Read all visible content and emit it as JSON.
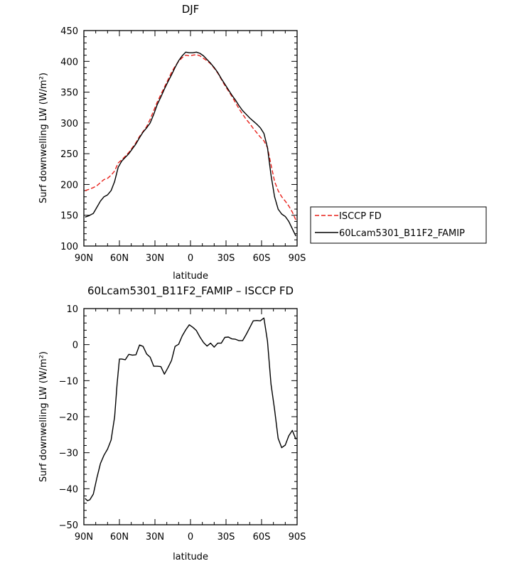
{
  "chart_data": [
    {
      "type": "line",
      "title": "DJF",
      "xlabel": "latitude",
      "ylabel": "Surf downwelling LW (W/m²)",
      "xlim": [
        90,
        -90
      ],
      "ylim": [
        100,
        450
      ],
      "xticks": [
        90,
        60,
        30,
        0,
        -30,
        -60,
        -90
      ],
      "xtick_labels": [
        "90N",
        "60N",
        "30N",
        "0",
        "30S",
        "60S",
        "90S"
      ],
      "yticks": [
        100,
        150,
        200,
        250,
        300,
        350,
        400,
        450
      ],
      "ytick_labels": [
        "100",
        "150",
        "200",
        "250",
        "300",
        "350",
        "400",
        "450"
      ],
      "legend_position": "right",
      "series": [
        {
          "name": "ISCCP FD",
          "color": "#e8201a",
          "dash": "dashed",
          "x": [
            89,
            86,
            82,
            79,
            76,
            73,
            70,
            67,
            64,
            61,
            58,
            55,
            52,
            49,
            46,
            43,
            40,
            37,
            34,
            31,
            28,
            25,
            22,
            19,
            16,
            13,
            10,
            7,
            4,
            1,
            -2,
            -5,
            -8,
            -11,
            -14,
            -17,
            -20,
            -23,
            -26,
            -29,
            -32,
            -35,
            -38,
            -41,
            -44,
            -47,
            -50,
            -53,
            -56,
            -59,
            -62,
            -65,
            -68,
            -71,
            -74,
            -77,
            -80,
            -83,
            -86,
            -89
          ],
          "y": [
            190,
            192,
            195,
            198,
            203,
            208,
            210,
            215,
            222,
            235,
            240,
            246,
            252,
            260,
            268,
            278,
            286,
            294,
            306,
            320,
            334,
            346,
            358,
            370,
            382,
            392,
            400,
            406,
            410,
            409,
            410,
            411,
            409,
            405,
            401,
            396,
            389,
            381,
            371,
            361,
            352,
            343,
            333,
            323,
            314,
            306,
            299,
            291,
            284,
            277,
            271,
            260,
            232,
            205,
            190,
            180,
            173,
            165,
            155,
            142
          ]
        },
        {
          "name": "60Lcam5301_B11F2_FAMIP",
          "color": "#000000",
          "dash": "solid",
          "x": [
            89,
            86,
            82,
            79,
            76,
            73,
            70,
            67,
            64,
            61,
            58,
            55,
            52,
            49,
            46,
            43,
            40,
            37,
            34,
            31,
            28,
            25,
            22,
            19,
            16,
            13,
            10,
            7,
            4,
            1,
            -2,
            -5,
            -8,
            -11,
            -14,
            -17,
            -20,
            -23,
            -26,
            -29,
            -32,
            -35,
            -38,
            -41,
            -44,
            -47,
            -50,
            -53,
            -56,
            -59,
            -62,
            -65,
            -68,
            -71,
            -74,
            -77,
            -80,
            -83,
            -86,
            -89
          ],
          "y": [
            147,
            149,
            153,
            163,
            173,
            180,
            183,
            190,
            205,
            228,
            238,
            244,
            250,
            258,
            266,
            276,
            285,
            292,
            300,
            314,
            330,
            342,
            355,
            367,
            378,
            390,
            401,
            409,
            415,
            414,
            414,
            415,
            413,
            409,
            403,
            397,
            390,
            382,
            372,
            363,
            354,
            345,
            337,
            328,
            320,
            314,
            308,
            303,
            298,
            292,
            283,
            260,
            215,
            180,
            160,
            152,
            148,
            140,
            128,
            116
          ]
        }
      ]
    },
    {
      "type": "line",
      "title": "60Lcam5301_B11F2_FAMIP – ISCCP FD",
      "xlabel": "latitude",
      "ylabel": "Surf downwelling LW (W/m²)",
      "xlim": [
        90,
        -90
      ],
      "ylim": [
        -50,
        10
      ],
      "xticks": [
        90,
        60,
        30,
        0,
        -30,
        -60,
        -90
      ],
      "xtick_labels": [
        "90N",
        "60N",
        "30N",
        "0",
        "30S",
        "60S",
        "90S"
      ],
      "yticks": [
        -50,
        -40,
        -30,
        -20,
        -10,
        0,
        10
      ],
      "ytick_labels": [
        "−50",
        "−40",
        "−30",
        "−20",
        "−10",
        "0",
        "10"
      ],
      "series": [
        {
          "color": "#000000",
          "dash": "solid",
          "x": [
            89,
            87,
            85,
            82,
            79,
            76,
            73,
            70,
            67,
            64,
            62,
            60,
            58,
            55,
            52,
            49,
            46,
            43,
            40,
            37,
            34,
            31,
            28,
            25,
            22,
            19,
            16,
            13,
            10,
            7,
            4,
            1,
            -2,
            -5,
            -8,
            -11,
            -14,
            -17,
            -20,
            -23,
            -26,
            -29,
            -32,
            -35,
            -38,
            -41,
            -44,
            -47,
            -50,
            -53,
            -56,
            -59,
            -62,
            -65,
            -68,
            -71,
            -74,
            -77,
            -80,
            -83,
            -86,
            -89
          ],
          "y": [
            -42.7,
            -43.3,
            -43.1,
            -41.5,
            -37,
            -33,
            -30.7,
            -29,
            -26.5,
            -20,
            -11,
            -4,
            -4,
            -4.2,
            -2.7,
            -2.9,
            -2.8,
            -0.1,
            -0.5,
            -2.6,
            -3.5,
            -6,
            -6,
            -6.1,
            -8.2,
            -6.4,
            -4.4,
            -0.5,
            0.1,
            2.4,
            4.1,
            5.5,
            4.8,
            3.9,
            2.1,
            0.6,
            -0.4,
            0.4,
            -0.7,
            0.4,
            0.4,
            2,
            2.1,
            1.6,
            1.5,
            1.1,
            1.1,
            2.8,
            4.7,
            6.6,
            6.7,
            6.6,
            7.4,
            1,
            -11,
            -18,
            -26,
            -28.6,
            -27.9,
            -25.3,
            -23.8,
            -26.3
          ]
        }
      ]
    }
  ]
}
